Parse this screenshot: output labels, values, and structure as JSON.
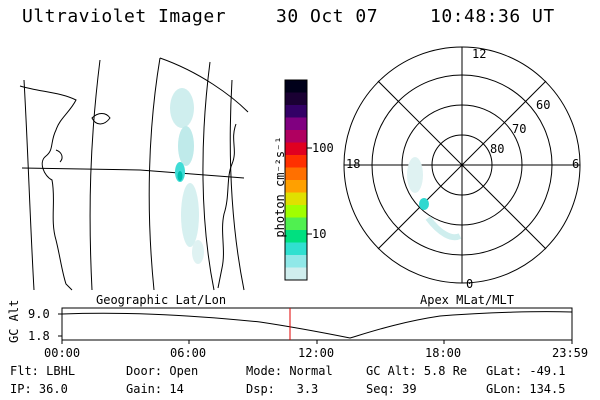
{
  "header": {
    "instrument": "Ultraviolet Imager",
    "date": "30 Oct 07",
    "time": "10:48:36 UT"
  },
  "colorbar": {
    "unit_label": "photon cm⁻²s⁻¹",
    "ticks": [
      "100",
      "10"
    ],
    "colors": [
      "#00001a",
      "#1a0033",
      "#330066",
      "#800080",
      "#b00060",
      "#e00020",
      "#ff3000",
      "#ff7000",
      "#ffa000",
      "#e0e000",
      "#a0ff00",
      "#50f050",
      "#00e080",
      "#30e0d0",
      "#90e8e8",
      "#d0eeee"
    ]
  },
  "polar_plot": {
    "mlt_labels": {
      "top": "12",
      "right": "6",
      "bottom": "0",
      "left": "18"
    },
    "lat_labels": [
      "60",
      "70",
      "80"
    ]
  },
  "panel_labels": {
    "left": "Geographic Lat/Lon",
    "right": "Apex MLat/MLT"
  },
  "altitude_plot": {
    "axis_label": "GC Alt",
    "y_ticks": [
      "9.0",
      "1.8"
    ],
    "x_ticks": [
      "00:00",
      "06:00",
      "12:00",
      "18:00",
      "23:59"
    ],
    "marker_color": "#e00000"
  },
  "footer": {
    "row1": [
      {
        "k": "Flt:",
        "v": "LBHL"
      },
      {
        "k": "Door:",
        "v": "Open"
      },
      {
        "k": "Mode:",
        "v": "Normal"
      },
      {
        "k": "GC Alt:",
        "v": "5.8 Re"
      },
      {
        "k": "GLat:",
        "v": "-49.1"
      }
    ],
    "row2": [
      {
        "k": "IP:",
        "v": "36.0"
      },
      {
        "k": "Gain:",
        "v": "14"
      },
      {
        "k": "Dsp:",
        "v": "  3.3"
      },
      {
        "k": "Seq:",
        "v": "39"
      },
      {
        "k": "GLon:",
        "v": "134.5"
      }
    ]
  }
}
